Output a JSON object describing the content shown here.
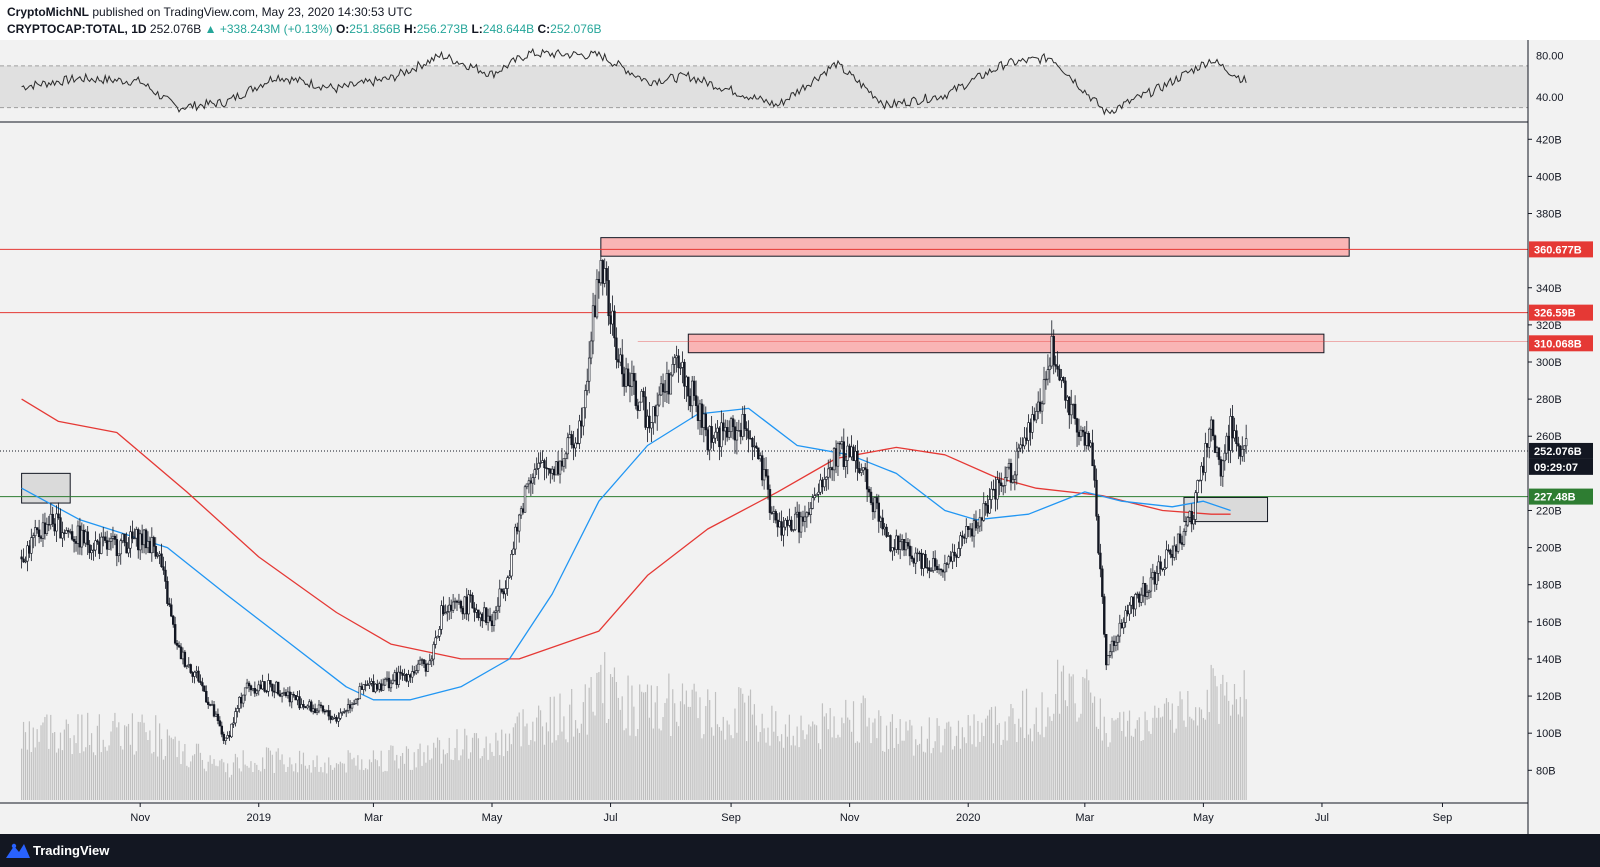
{
  "header": {
    "author": "CryptoMichNL",
    "published": "published on TradingView.com, May 23, 2020 14:30:53 UTC",
    "symbol": "CRYPTOCAP:TOTAL, 1D",
    "last": "252.076B",
    "change": "▲ +338.243M (+0.13%)",
    "o_label": "O:",
    "o": "251.856B",
    "h_label": "H:",
    "h": "256.273B",
    "l_label": "L:",
    "l": "248.644B",
    "c_label": "C:",
    "c": "252.076B"
  },
  "footer": {
    "brand": "TradingView"
  },
  "colors": {
    "up": "#26a69a",
    "resistance": "#e53935",
    "support": "#2e7d32",
    "ma_blue": "#2196f3",
    "ma_red": "#e53935",
    "zone_fill": "#f9b5b5",
    "box_fill": "#d6d6d6"
  },
  "chart_data": {
    "type": "candlestick",
    "unit": "B",
    "x_axis": {
      "ticks": [
        "Nov",
        "2019",
        "Mar",
        "May",
        "Jul",
        "Sep",
        "Nov",
        "2020",
        "Mar",
        "May",
        "Jul",
        "Sep"
      ]
    },
    "y_axis": {
      "ticks": [
        "420B",
        "400B",
        "380B",
        "340B",
        "320B",
        "300B",
        "280B",
        "260B",
        "220B",
        "200B",
        "180B",
        "160B",
        "140B",
        "120B",
        "100B",
        "80B"
      ],
      "range": [
        64,
        425
      ]
    },
    "rsi_panel": {
      "ticks": [
        "80.00",
        "40.00"
      ],
      "band": [
        30,
        70
      ]
    },
    "price_labels": [
      {
        "text": "360.677B",
        "value": 360.677,
        "color": "#e53935"
      },
      {
        "text": "326.59B",
        "value": 326.59,
        "color": "#e53935"
      },
      {
        "text": "310.068B",
        "value": 310.068,
        "color": "#e53935"
      },
      {
        "text": "252.076B",
        "value": 252.076,
        "color": "#131722"
      },
      {
        "text": "09:29:07",
        "value": 243.5,
        "color": "#131722"
      },
      {
        "text": "227.48B",
        "value": 227.48,
        "color": "#2e7d32"
      }
    ],
    "horizontal_lines": [
      {
        "value": 360.677,
        "color": "#e53935"
      },
      {
        "value": 326.59,
        "color": "#e53935"
      },
      {
        "value": 227.48,
        "color": "#2e7d32"
      },
      {
        "value": 252.076,
        "color": "#131722",
        "dotted": true
      }
    ],
    "zones": [
      {
        "date_from": "2019-06-26",
        "date_to": "2020-07-15",
        "from": 357,
        "to": 367
      },
      {
        "date_from": "2019-08-10",
        "date_to": "2020-07-02",
        "from": 305,
        "to": 315
      }
    ],
    "boxes": [
      {
        "date_from": "2018-09-01",
        "date_to": "2018-09-26",
        "from": 224,
        "to": 240
      },
      {
        "date_from": "2020-04-21",
        "date_to": "2020-06-03",
        "from": 214,
        "to": 227
      }
    ],
    "price_path": [
      [
        "2018-09-01",
        195
      ],
      [
        "2018-09-15",
        215
      ],
      [
        "2018-10-01",
        205
      ],
      [
        "2018-10-15",
        200
      ],
      [
        "2018-11-01",
        205
      ],
      [
        "2018-11-10",
        200
      ],
      [
        "2018-11-20",
        145
      ],
      [
        "2018-12-01",
        130
      ],
      [
        "2018-12-15",
        95
      ],
      [
        "2018-12-25",
        125
      ],
      [
        "2019-01-10",
        125
      ],
      [
        "2019-01-25",
        115
      ],
      [
        "2019-02-10",
        108
      ],
      [
        "2019-02-25",
        125
      ],
      [
        "2019-03-10",
        128
      ],
      [
        "2019-03-30",
        138
      ],
      [
        "2019-04-05",
        165
      ],
      [
        "2019-04-20",
        170
      ],
      [
        "2019-05-01",
        160
      ],
      [
        "2019-05-10",
        190
      ],
      [
        "2019-05-20",
        240
      ],
      [
        "2019-06-05",
        245
      ],
      [
        "2019-06-15",
        265
      ],
      [
        "2019-06-26",
        355
      ],
      [
        "2019-07-05",
        300
      ],
      [
        "2019-07-20",
        270
      ],
      [
        "2019-08-05",
        300
      ],
      [
        "2019-08-20",
        260
      ],
      [
        "2019-09-10",
        265
      ],
      [
        "2019-09-25",
        210
      ],
      [
        "2019-10-10",
        215
      ],
      [
        "2019-10-25",
        250
      ],
      [
        "2019-11-05",
        250
      ],
      [
        "2019-11-20",
        205
      ],
      [
        "2019-12-05",
        195
      ],
      [
        "2019-12-20",
        190
      ],
      [
        "2020-01-10",
        220
      ],
      [
        "2020-01-25",
        245
      ],
      [
        "2020-02-05",
        270
      ],
      [
        "2020-02-13",
        305
      ],
      [
        "2020-02-25",
        270
      ],
      [
        "2020-03-05",
        250
      ],
      [
        "2020-03-12",
        140
      ],
      [
        "2020-03-25",
        170
      ],
      [
        "2020-04-10",
        190
      ],
      [
        "2020-04-25",
        215
      ],
      [
        "2020-05-05",
        265
      ],
      [
        "2020-05-10",
        240
      ],
      [
        "2020-05-15",
        265
      ],
      [
        "2020-05-23",
        252
      ]
    ],
    "ma_blue_path": [
      [
        "2018-09-01",
        232
      ],
      [
        "2018-10-01",
        215
      ],
      [
        "2018-11-15",
        200
      ],
      [
        "2018-12-15",
        175
      ],
      [
        "2019-01-15",
        150
      ],
      [
        "2019-02-15",
        125
      ],
      [
        "2019-03-01",
        118
      ],
      [
        "2019-03-20",
        118
      ],
      [
        "2019-04-15",
        125
      ],
      [
        "2019-05-10",
        140
      ],
      [
        "2019-06-01",
        175
      ],
      [
        "2019-06-25",
        225
      ],
      [
        "2019-07-20",
        255
      ],
      [
        "2019-08-15",
        272
      ],
      [
        "2019-09-10",
        275
      ],
      [
        "2019-10-05",
        255
      ],
      [
        "2019-11-01",
        250
      ],
      [
        "2019-11-25",
        240
      ],
      [
        "2019-12-20",
        220
      ],
      [
        "2020-01-05",
        215
      ],
      [
        "2020-02-01",
        218
      ],
      [
        "2020-03-01",
        230
      ],
      [
        "2020-03-20",
        225
      ],
      [
        "2020-04-15",
        222
      ],
      [
        "2020-05-01",
        225
      ],
      [
        "2020-05-15",
        220
      ]
    ],
    "ma_red_path": [
      [
        "2018-09-01",
        280
      ],
      [
        "2018-09-20",
        268
      ],
      [
        "2018-10-20",
        262
      ],
      [
        "2018-11-25",
        230
      ],
      [
        "2019-01-01",
        195
      ],
      [
        "2019-02-10",
        165
      ],
      [
        "2019-03-10",
        148
      ],
      [
        "2019-04-15",
        140
      ],
      [
        "2019-05-15",
        140
      ],
      [
        "2019-06-25",
        155
      ],
      [
        "2019-07-20",
        185
      ],
      [
        "2019-08-20",
        210
      ],
      [
        "2019-09-25",
        230
      ],
      [
        "2019-10-25",
        248
      ],
      [
        "2019-11-25",
        254
      ],
      [
        "2019-12-20",
        250
      ],
      [
        "2020-01-15",
        238
      ],
      [
        "2020-02-05",
        232
      ],
      [
        "2020-03-10",
        228
      ],
      [
        "2020-04-10",
        220
      ],
      [
        "2020-05-05",
        218
      ],
      [
        "2020-05-15",
        218
      ]
    ],
    "rsi_path": [
      [
        "2018-09-01",
        50
      ],
      [
        "2018-10-01",
        58
      ],
      [
        "2018-11-01",
        55
      ],
      [
        "2018-11-20",
        30
      ],
      [
        "2018-12-15",
        35
      ],
      [
        "2019-01-10",
        60
      ],
      [
        "2019-02-10",
        48
      ],
      [
        "2019-03-10",
        58
      ],
      [
        "2019-04-05",
        80
      ],
      [
        "2019-05-01",
        62
      ],
      [
        "2019-05-20",
        82
      ],
      [
        "2019-06-26",
        80
      ],
      [
        "2019-07-20",
        55
      ],
      [
        "2019-08-10",
        60
      ],
      [
        "2019-09-25",
        32
      ],
      [
        "2019-10-25",
        72
      ],
      [
        "2019-11-20",
        32
      ],
      [
        "2019-12-20",
        42
      ],
      [
        "2020-01-20",
        72
      ],
      [
        "2020-02-13",
        78
      ],
      [
        "2020-03-12",
        25
      ],
      [
        "2020-04-10",
        50
      ],
      [
        "2020-05-05",
        76
      ],
      [
        "2020-05-23",
        55
      ]
    ]
  }
}
